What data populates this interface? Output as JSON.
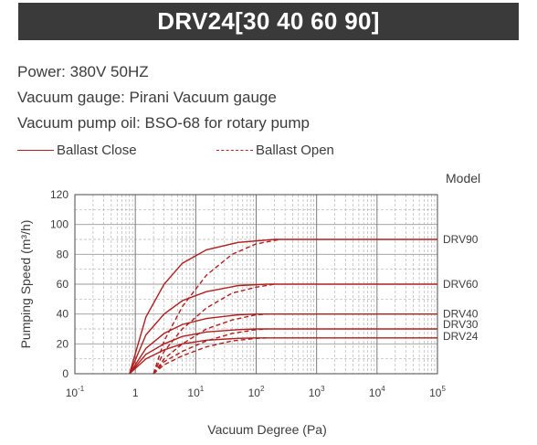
{
  "header": {
    "title": "DRV24[30 40 60 90]"
  },
  "info": {
    "power": "Power: 380V 50HZ",
    "gauge": "Vacuum gauge: Pirani Vacuum gauge",
    "oil": "Vacuum pump oil: BSO-68 for rotary pump"
  },
  "legend": {
    "solid": "Ballast Close",
    "dashed": "Ballast Open"
  },
  "colors": {
    "curve": "#b11e1e",
    "title_bg": "#3a3a3a"
  },
  "chart_data": {
    "type": "line",
    "xlabel": "Vacuum Degree (Pa)",
    "ylabel": "Pumping Speed (m³/h)",
    "model_label": "Model",
    "x_scale": "log",
    "xlim": [
      0.1,
      100000
    ],
    "ylim": [
      0,
      120
    ],
    "x_ticks": [
      {
        "base": "10",
        "exp": "-1",
        "value": 0.1
      },
      {
        "base": "1",
        "exp": "",
        "value": 1
      },
      {
        "base": "10",
        "exp": "1",
        "value": 10
      },
      {
        "base": "10",
        "exp": "2",
        "value": 100
      },
      {
        "base": "10",
        "exp": "3",
        "value": 1000
      },
      {
        "base": "10",
        "exp": "4",
        "value": 10000
      },
      {
        "base": "10",
        "exp": "5",
        "value": 100000
      }
    ],
    "y_ticks": [
      0,
      20,
      40,
      60,
      80,
      100,
      120
    ],
    "grid": true,
    "series": [
      {
        "name": "DRV90",
        "style": "solid",
        "points": [
          [
            0.8,
            0
          ],
          [
            1.5,
            38
          ],
          [
            3,
            60
          ],
          [
            6,
            74
          ],
          [
            15,
            83
          ],
          [
            50,
            88
          ],
          [
            200,
            90
          ],
          [
            100000,
            90
          ]
        ]
      },
      {
        "name": "DRV90",
        "style": "dashed",
        "points": [
          [
            2,
            0
          ],
          [
            3,
            22
          ],
          [
            6,
            45
          ],
          [
            15,
            66
          ],
          [
            40,
            80
          ],
          [
            100,
            87
          ],
          [
            250,
            90
          ]
        ]
      },
      {
        "name": "DRV60",
        "style": "solid",
        "points": [
          [
            0.8,
            0
          ],
          [
            1.5,
            26
          ],
          [
            3,
            40
          ],
          [
            6,
            49
          ],
          [
            15,
            55
          ],
          [
            50,
            59
          ],
          [
            150,
            60
          ],
          [
            100000,
            60
          ]
        ]
      },
      {
        "name": "DRV60",
        "style": "dashed",
        "points": [
          [
            2,
            0
          ],
          [
            3,
            15
          ],
          [
            6,
            30
          ],
          [
            15,
            44
          ],
          [
            40,
            54
          ],
          [
            100,
            58
          ],
          [
            200,
            60
          ]
        ]
      },
      {
        "name": "DRV40",
        "style": "solid",
        "points": [
          [
            0.8,
            0
          ],
          [
            1.5,
            17
          ],
          [
            3,
            27
          ],
          [
            6,
            33
          ],
          [
            15,
            37
          ],
          [
            50,
            39.5
          ],
          [
            100,
            40
          ],
          [
            100000,
            40
          ]
        ]
      },
      {
        "name": "DRV40",
        "style": "dashed",
        "points": [
          [
            2,
            0
          ],
          [
            3,
            10
          ],
          [
            6,
            20
          ],
          [
            15,
            30
          ],
          [
            40,
            36
          ],
          [
            100,
            39.5
          ],
          [
            150,
            40
          ]
        ]
      },
      {
        "name": "DRV30",
        "style": "solid",
        "points": [
          [
            0.8,
            0
          ],
          [
            1.5,
            13
          ],
          [
            3,
            20
          ],
          [
            6,
            25
          ],
          [
            15,
            28
          ],
          [
            50,
            29.5
          ],
          [
            100,
            30
          ],
          [
            100000,
            30
          ]
        ]
      },
      {
        "name": "DRV30",
        "style": "dashed",
        "points": [
          [
            2,
            0
          ],
          [
            3,
            8
          ],
          [
            6,
            15
          ],
          [
            15,
            22
          ],
          [
            40,
            27
          ],
          [
            100,
            29.5
          ],
          [
            150,
            30
          ]
        ]
      },
      {
        "name": "DRV24",
        "style": "solid",
        "points": [
          [
            0.8,
            0
          ],
          [
            1.5,
            10
          ],
          [
            3,
            16
          ],
          [
            6,
            20
          ],
          [
            15,
            22.5
          ],
          [
            50,
            23.7
          ],
          [
            100,
            24
          ],
          [
            100000,
            24
          ]
        ]
      },
      {
        "name": "DRV24",
        "style": "dashed",
        "points": [
          [
            2,
            0
          ],
          [
            3,
            6
          ],
          [
            6,
            12
          ],
          [
            15,
            18
          ],
          [
            40,
            22
          ],
          [
            100,
            23.7
          ],
          [
            150,
            24
          ]
        ]
      }
    ],
    "end_labels": [
      {
        "text": "DRV90",
        "y": 90
      },
      {
        "text": "DRV60",
        "y": 60
      },
      {
        "text": "DRV40",
        "y": 40
      },
      {
        "text": "DRV30",
        "y": 33
      },
      {
        "text": "DRV24",
        "y": 25
      }
    ]
  }
}
